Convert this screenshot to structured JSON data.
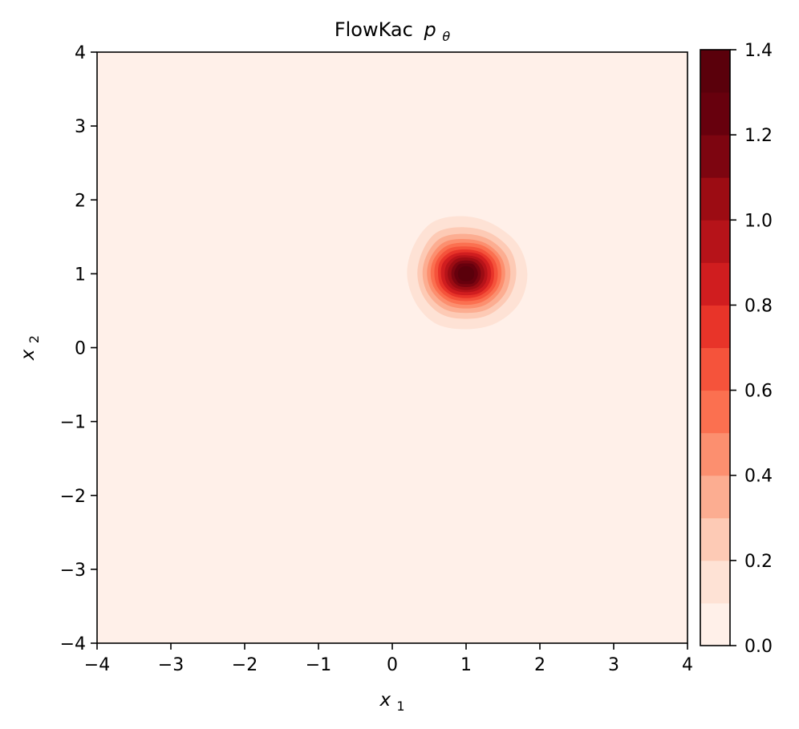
{
  "chart_data": {
    "type": "contourf",
    "title": "FlowKac",
    "title_symbol": "p",
    "title_symbol_sub": "θ",
    "xlabel": "x",
    "xlabel_sub": "1",
    "ylabel": "x",
    "ylabel_sub": "2",
    "xlim": [
      -4,
      4
    ],
    "ylim": [
      -4,
      4
    ],
    "xticks": [
      -4,
      -3,
      -2,
      -1,
      0,
      1,
      2,
      3,
      4
    ],
    "xtick_labels": [
      "−4",
      "−3",
      "−2",
      "−1",
      "0",
      "1",
      "2",
      "3",
      "4"
    ],
    "yticks": [
      -4,
      -3,
      -2,
      -1,
      0,
      1,
      2,
      3,
      4
    ],
    "ytick_labels": [
      "−4",
      "−3",
      "−2",
      "−1",
      "0",
      "1",
      "2",
      "3",
      "4"
    ],
    "colormap": "Reds",
    "levels": [
      0.0,
      0.1,
      0.2,
      0.3,
      0.4,
      0.5,
      0.6,
      0.7,
      0.8,
      0.9,
      1.0,
      1.1,
      1.2,
      1.3,
      1.4
    ],
    "level_colors": [
      "#fff0e9",
      "#fee2d5",
      "#fdcab5",
      "#fcad91",
      "#fc8f6f",
      "#fb7050",
      "#f5533b",
      "#e83429",
      "#d01d1f",
      "#b61319",
      "#9c0c13",
      "#7d0510",
      "#67000d",
      "#5a000b"
    ],
    "colorbar_ticks": [
      0.0,
      0.2,
      0.4,
      0.6,
      0.8,
      1.0,
      1.2,
      1.4
    ],
    "colorbar_tick_labels": [
      "0.0",
      "0.2",
      "0.4",
      "0.6",
      "0.8",
      "1.0",
      "1.2",
      "1.4"
    ],
    "density_peak": {
      "x1": 1.0,
      "x2": 1.0,
      "value": 1.38
    },
    "contours": [
      {
        "level": 0.1,
        "points": [
          [
            0.55,
            1.7
          ],
          [
            0.95,
            1.78
          ],
          [
            1.35,
            1.68
          ],
          [
            1.7,
            1.4
          ],
          [
            1.83,
            1.0
          ],
          [
            1.72,
            0.6
          ],
          [
            1.4,
            0.33
          ],
          [
            1.0,
            0.25
          ],
          [
            0.6,
            0.32
          ],
          [
            0.32,
            0.6
          ],
          [
            0.2,
            1.0
          ],
          [
            0.3,
            1.4
          ]
        ]
      },
      {
        "level": 0.2,
        "points": [
          [
            0.62,
            1.57
          ],
          [
            0.98,
            1.63
          ],
          [
            1.33,
            1.55
          ],
          [
            1.6,
            1.32
          ],
          [
            1.68,
            1.0
          ],
          [
            1.58,
            0.68
          ],
          [
            1.32,
            0.45
          ],
          [
            1.0,
            0.39
          ],
          [
            0.67,
            0.45
          ],
          [
            0.43,
            0.68
          ],
          [
            0.34,
            1.0
          ],
          [
            0.42,
            1.33
          ]
        ]
      },
      {
        "level": 0.3,
        "points": [
          [
            0.67,
            1.49
          ],
          [
            0.99,
            1.54
          ],
          [
            1.3,
            1.47
          ],
          [
            1.53,
            1.27
          ],
          [
            1.6,
            1.0
          ],
          [
            1.52,
            0.72
          ],
          [
            1.29,
            0.52
          ],
          [
            1.0,
            0.47
          ],
          [
            0.71,
            0.52
          ],
          [
            0.49,
            0.72
          ],
          [
            0.41,
            1.0
          ],
          [
            0.48,
            1.28
          ]
        ]
      },
      {
        "level": 0.4,
        "points": [
          [
            0.71,
            1.43
          ],
          [
            1.0,
            1.47
          ],
          [
            1.27,
            1.41
          ],
          [
            1.47,
            1.23
          ],
          [
            1.53,
            1.0
          ],
          [
            1.46,
            0.76
          ],
          [
            1.26,
            0.58
          ],
          [
            1.0,
            0.53
          ],
          [
            0.74,
            0.58
          ],
          [
            0.54,
            0.76
          ],
          [
            0.47,
            1.0
          ],
          [
            0.53,
            1.24
          ]
        ]
      },
      {
        "level": 0.5,
        "points": [
          [
            0.74,
            1.38
          ],
          [
            1.0,
            1.42
          ],
          [
            1.25,
            1.37
          ],
          [
            1.43,
            1.21
          ],
          [
            1.48,
            1.0
          ],
          [
            1.42,
            0.79
          ],
          [
            1.24,
            0.63
          ],
          [
            1.0,
            0.58
          ],
          [
            0.76,
            0.63
          ],
          [
            0.58,
            0.79
          ],
          [
            0.52,
            1.0
          ],
          [
            0.57,
            1.21
          ]
        ]
      },
      {
        "level": 0.6,
        "points": [
          [
            0.77,
            1.34
          ],
          [
            1.0,
            1.37
          ],
          [
            1.22,
            1.33
          ],
          [
            1.38,
            1.19
          ],
          [
            1.43,
            1.0
          ],
          [
            1.38,
            0.81
          ],
          [
            1.22,
            0.67
          ],
          [
            1.0,
            0.63
          ],
          [
            0.78,
            0.67
          ],
          [
            0.62,
            0.81
          ],
          [
            0.57,
            1.0
          ],
          [
            0.61,
            1.19
          ]
        ]
      },
      {
        "level": 0.7,
        "points": [
          [
            0.8,
            1.3
          ],
          [
            1.0,
            1.33
          ],
          [
            1.2,
            1.29
          ],
          [
            1.34,
            1.17
          ],
          [
            1.38,
            1.0
          ],
          [
            1.34,
            0.83
          ],
          [
            1.2,
            0.71
          ],
          [
            1.0,
            0.67
          ],
          [
            0.8,
            0.71
          ],
          [
            0.66,
            0.83
          ],
          [
            0.62,
            1.0
          ],
          [
            0.65,
            1.17
          ]
        ]
      },
      {
        "level": 0.8,
        "points": [
          [
            0.82,
            1.26
          ],
          [
            1.0,
            1.29
          ],
          [
            1.18,
            1.26
          ],
          [
            1.3,
            1.15
          ],
          [
            1.34,
            1.0
          ],
          [
            1.3,
            0.85
          ],
          [
            1.18,
            0.74
          ],
          [
            1.0,
            0.71
          ],
          [
            0.82,
            0.74
          ],
          [
            0.7,
            0.85
          ],
          [
            0.66,
            1.0
          ],
          [
            0.69,
            1.15
          ]
        ]
      },
      {
        "level": 0.9,
        "points": [
          [
            0.85,
            1.23
          ],
          [
            1.0,
            1.25
          ],
          [
            1.16,
            1.22
          ],
          [
            1.26,
            1.13
          ],
          [
            1.29,
            1.0
          ],
          [
            1.26,
            0.87
          ],
          [
            1.16,
            0.78
          ],
          [
            1.0,
            0.75
          ],
          [
            0.84,
            0.78
          ],
          [
            0.74,
            0.87
          ],
          [
            0.71,
            1.0
          ],
          [
            0.74,
            1.13
          ]
        ]
      },
      {
        "level": 1.0,
        "points": [
          [
            0.87,
            1.2
          ],
          [
            1.0,
            1.22
          ],
          [
            1.14,
            1.19
          ],
          [
            1.22,
            1.11
          ],
          [
            1.25,
            1.0
          ],
          [
            1.22,
            0.89
          ],
          [
            1.14,
            0.81
          ],
          [
            1.0,
            0.78
          ],
          [
            0.86,
            0.81
          ],
          [
            0.78,
            0.89
          ],
          [
            0.75,
            1.0
          ],
          [
            0.78,
            1.11
          ]
        ]
      },
      {
        "level": 1.1,
        "points": [
          [
            0.89,
            1.16
          ],
          [
            1.0,
            1.18
          ],
          [
            1.11,
            1.16
          ],
          [
            1.18,
            1.09
          ],
          [
            1.2,
            1.0
          ],
          [
            1.18,
            0.91
          ],
          [
            1.11,
            0.84
          ],
          [
            1.0,
            0.82
          ],
          [
            0.89,
            0.84
          ],
          [
            0.82,
            0.91
          ],
          [
            0.8,
            1.0
          ],
          [
            0.82,
            1.09
          ]
        ]
      },
      {
        "level": 1.2,
        "points": [
          [
            0.91,
            1.13
          ],
          [
            1.0,
            1.14
          ],
          [
            1.09,
            1.13
          ],
          [
            1.14,
            1.07
          ],
          [
            1.16,
            1.0
          ],
          [
            1.14,
            0.93
          ],
          [
            1.09,
            0.87
          ],
          [
            1.0,
            0.86
          ],
          [
            0.91,
            0.87
          ],
          [
            0.86,
            0.93
          ],
          [
            0.84,
            1.0
          ],
          [
            0.86,
            1.07
          ]
        ]
      },
      {
        "level": 1.3,
        "points": [
          [
            0.94,
            1.09
          ],
          [
            1.0,
            1.1
          ],
          [
            1.06,
            1.09
          ],
          [
            1.1,
            1.05
          ],
          [
            1.11,
            1.0
          ],
          [
            1.1,
            0.95
          ],
          [
            1.06,
            0.91
          ],
          [
            1.0,
            0.9
          ],
          [
            0.94,
            0.91
          ],
          [
            0.9,
            0.95
          ],
          [
            0.89,
            1.0
          ],
          [
            0.9,
            1.05
          ]
        ]
      }
    ]
  }
}
